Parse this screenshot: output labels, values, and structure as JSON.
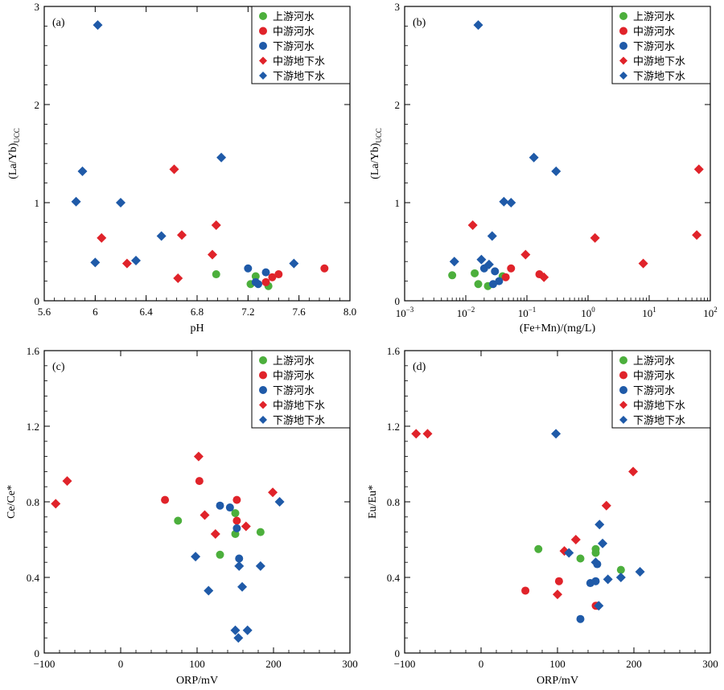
{
  "legend_colors": {
    "upstream_river": "#4caf3c",
    "midstream_river": "#e0232a",
    "downstream_river": "#1f5aa8",
    "midstream_groundwater": "#e0232a",
    "downstream_groundwater": "#1f5aa8"
  },
  "chart_data": [
    {
      "id": "a",
      "type": "scatter",
      "tag": "(a)",
      "xlabel": "pH",
      "ylabel_main": "(La/Yb)",
      "ylabel_sub": "UCC",
      "xlim": [
        5.6,
        8.0
      ],
      "ylim": [
        0,
        3
      ],
      "xscale": "linear",
      "xticks": [
        5.6,
        6.0,
        6.4,
        6.8,
        7.2,
        7.6,
        8.0
      ],
      "xtick_labels": [
        "5.6",
        "6",
        "6.4",
        "6.8",
        "7.2",
        "7.6",
        "8.0"
      ],
      "yticks": [
        0,
        1,
        2,
        3
      ],
      "ytick_labels": [
        "0",
        "1",
        "2",
        "3"
      ],
      "legend_position": "top-right",
      "series": [
        {
          "name": "上游河水",
          "marker": "circle",
          "color": "#4caf3c",
          "points": [
            [
              6.95,
              0.27
            ],
            [
              7.22,
              0.17
            ],
            [
              7.26,
              0.25
            ],
            [
              7.36,
              0.15
            ]
          ]
        },
        {
          "name": "中游河水",
          "marker": "circle",
          "color": "#e0232a",
          "points": [
            [
              7.34,
              0.19
            ],
            [
              7.39,
              0.24
            ],
            [
              7.44,
              0.27
            ],
            [
              7.8,
              0.33
            ]
          ]
        },
        {
          "name": "下游河水",
          "marker": "circle",
          "color": "#1f5aa8",
          "points": [
            [
              7.2,
              0.33
            ],
            [
              7.26,
              0.19
            ],
            [
              7.28,
              0.17
            ],
            [
              7.34,
              0.29
            ]
          ]
        },
        {
          "name": "中游地下水",
          "marker": "diamond",
          "color": "#e0232a",
          "points": [
            [
              6.05,
              0.64
            ],
            [
              6.25,
              0.38
            ],
            [
              6.62,
              1.34
            ],
            [
              6.65,
              0.23
            ],
            [
              6.68,
              0.67
            ],
            [
              6.92,
              0.47
            ],
            [
              6.95,
              0.77
            ]
          ]
        },
        {
          "name": "下游地下水",
          "marker": "diamond",
          "color": "#1f5aa8",
          "points": [
            [
              6.02,
              2.81
            ],
            [
              5.9,
              1.32
            ],
            [
              5.85,
              1.01
            ],
            [
              6.2,
              1.0
            ],
            [
              6.0,
              0.39
            ],
            [
              6.32,
              0.41
            ],
            [
              6.52,
              0.66
            ],
            [
              6.99,
              1.46
            ],
            [
              7.56,
              0.38
            ]
          ]
        }
      ]
    },
    {
      "id": "b",
      "type": "scatter",
      "tag": "(b)",
      "xlabel": "(Fe+Mn)/(mg/L)",
      "ylabel_main": "(La/Yb)",
      "ylabel_sub": "UCC",
      "xlim": [
        0.001,
        100
      ],
      "ylim": [
        0,
        3
      ],
      "xscale": "log",
      "xticks": [
        0.001,
        0.01,
        0.1,
        1,
        10,
        100
      ],
      "xtick_bases": [
        "10",
        "10",
        "10",
        "10",
        "10",
        "10"
      ],
      "xtick_exps": [
        "−3",
        "−2",
        "−1",
        "0",
        "1",
        "2"
      ],
      "yticks": [
        0,
        1,
        2,
        3
      ],
      "ytick_labels": [
        "0",
        "1",
        "2",
        "3"
      ],
      "legend_position": "top-right",
      "series": [
        {
          "name": "上游河水",
          "marker": "circle",
          "color": "#4caf3c",
          "points": [
            [
              0.006,
              0.26
            ],
            [
              0.014,
              0.28
            ],
            [
              0.016,
              0.17
            ],
            [
              0.023,
              0.15
            ],
            [
              0.04,
              0.25
            ]
          ]
        },
        {
          "name": "中游河水",
          "marker": "circle",
          "color": "#e0232a",
          "points": [
            [
              0.045,
              0.24
            ],
            [
              0.055,
              0.33
            ],
            [
              0.16,
              0.27
            ]
          ]
        },
        {
          "name": "下游河水",
          "marker": "circle",
          "color": "#1f5aa8",
          "points": [
            [
              0.02,
              0.33
            ],
            [
              0.028,
              0.17
            ],
            [
              0.03,
              0.3
            ],
            [
              0.035,
              0.2
            ]
          ]
        },
        {
          "name": "中游地下水",
          "marker": "diamond",
          "color": "#e0232a",
          "points": [
            [
              0.013,
              0.77
            ],
            [
              0.095,
              0.47
            ],
            [
              0.19,
              0.24
            ],
            [
              1.3,
              0.64
            ],
            [
              8.0,
              0.38
            ],
            [
              60,
              0.67
            ],
            [
              65,
              1.34
            ]
          ]
        },
        {
          "name": "下游地下水",
          "marker": "diamond",
          "color": "#1f5aa8",
          "points": [
            [
              0.016,
              2.81
            ],
            [
              0.0065,
              0.4
            ],
            [
              0.018,
              0.42
            ],
            [
              0.024,
              0.37
            ],
            [
              0.027,
              0.66
            ],
            [
              0.042,
              1.01
            ],
            [
              0.055,
              1.0
            ],
            [
              0.13,
              1.46
            ],
            [
              0.3,
              1.32
            ]
          ]
        }
      ]
    },
    {
      "id": "c",
      "type": "scatter",
      "tag": "(c)",
      "xlabel": "ORP/mV",
      "ylabel": "Ce/Ce*",
      "xlim": [
        -100,
        300
      ],
      "ylim": [
        0,
        1.6
      ],
      "xscale": "linear",
      "xticks": [
        -100,
        0,
        100,
        200,
        300
      ],
      "xtick_labels": [
        "−100",
        "0",
        "100",
        "200",
        "300"
      ],
      "yticks": [
        0,
        0.4,
        0.8,
        1.2,
        1.6
      ],
      "ytick_labels": [
        "0",
        "0.4",
        "0.8",
        "1.2",
        "1.6"
      ],
      "legend_position": "top-right",
      "series": [
        {
          "name": "上游河水",
          "marker": "circle",
          "color": "#4caf3c",
          "points": [
            [
              75,
              0.7
            ],
            [
              130,
              0.52
            ],
            [
              150,
              0.74
            ],
            [
              150,
              0.63
            ],
            [
              183,
              0.64
            ]
          ]
        },
        {
          "name": "中游河水",
          "marker": "circle",
          "color": "#e0232a",
          "points": [
            [
              58,
              0.81
            ],
            [
              103,
              0.91
            ],
            [
              152,
              0.81
            ],
            [
              152,
              0.7
            ]
          ]
        },
        {
          "name": "下游河水",
          "marker": "circle",
          "color": "#1f5aa8",
          "points": [
            [
              130,
              0.78
            ],
            [
              143,
              0.77
            ],
            [
              152,
              0.66
            ],
            [
              155,
              0.5
            ]
          ]
        },
        {
          "name": "中游地下水",
          "marker": "diamond",
          "color": "#e0232a",
          "points": [
            [
              -85,
              0.79
            ],
            [
              -70,
              0.91
            ],
            [
              102,
              1.04
            ],
            [
              110,
              0.73
            ],
            [
              124,
              0.63
            ],
            [
              164,
              0.67
            ],
            [
              199,
              0.85
            ]
          ]
        },
        {
          "name": "下游地下水",
          "marker": "diamond",
          "color": "#1f5aa8",
          "points": [
            [
              98,
              0.51
            ],
            [
              115,
              0.33
            ],
            [
              150,
              0.12
            ],
            [
              154,
              0.08
            ],
            [
              155,
              0.46
            ],
            [
              159,
              0.35
            ],
            [
              166,
              0.12
            ],
            [
              183,
              0.46
            ],
            [
              208,
              0.8
            ]
          ]
        }
      ]
    },
    {
      "id": "d",
      "type": "scatter",
      "tag": "(d)",
      "xlabel": "ORP/mV",
      "ylabel": "Eu/Eu*",
      "xlim": [
        -100,
        300
      ],
      "ylim": [
        0,
        1.6
      ],
      "xscale": "linear",
      "xticks": [
        -100,
        0,
        100,
        200,
        300
      ],
      "xtick_labels": [
        "−100",
        "0",
        "100",
        "200",
        "300"
      ],
      "yticks": [
        0,
        0.4,
        0.8,
        1.2,
        1.6
      ],
      "ytick_labels": [
        "0",
        "0.4",
        "0.8",
        "1.2",
        "1.6"
      ],
      "legend_position": "top-right",
      "series": [
        {
          "name": "上游河水",
          "marker": "circle",
          "color": "#4caf3c",
          "points": [
            [
              75,
              0.55
            ],
            [
              130,
              0.5
            ],
            [
              150,
              0.55
            ],
            [
              150,
              0.53
            ],
            [
              183,
              0.44
            ]
          ]
        },
        {
          "name": "中游河水",
          "marker": "circle",
          "color": "#e0232a",
          "points": [
            [
              58,
              0.33
            ],
            [
              102,
              0.38
            ],
            [
              150,
              0.25
            ],
            [
              152,
              0.25
            ]
          ]
        },
        {
          "name": "下游河水",
          "marker": "circle",
          "color": "#1f5aa8",
          "points": [
            [
              130,
              0.18
            ],
            [
              143,
              0.37
            ],
            [
              150,
              0.38
            ],
            [
              152,
              0.47
            ]
          ]
        },
        {
          "name": "中游地下水",
          "marker": "diamond",
          "color": "#e0232a",
          "points": [
            [
              -85,
              1.16
            ],
            [
              -70,
              1.16
            ],
            [
              100,
              0.31
            ],
            [
              109,
              0.54
            ],
            [
              124,
              0.6
            ],
            [
              164,
              0.78
            ],
            [
              199,
              0.96
            ]
          ]
        },
        {
          "name": "下游地下水",
          "marker": "diamond",
          "color": "#1f5aa8",
          "points": [
            [
              98,
              1.16
            ],
            [
              115,
              0.53
            ],
            [
              150,
              0.48
            ],
            [
              154,
              0.25
            ],
            [
              155,
              0.68
            ],
            [
              159,
              0.58
            ],
            [
              166,
              0.39
            ],
            [
              183,
              0.4
            ],
            [
              208,
              0.43
            ]
          ]
        }
      ]
    }
  ]
}
